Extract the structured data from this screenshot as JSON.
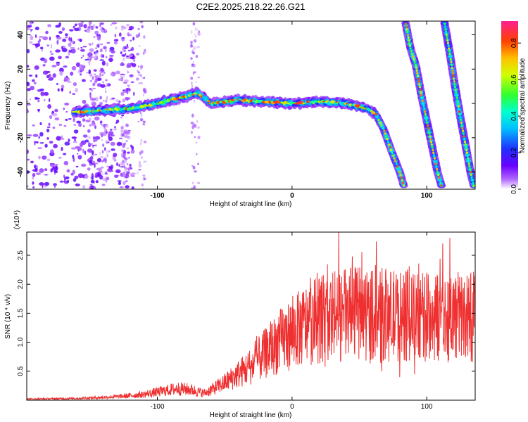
{
  "title": "C2E2.2025.218.22.26.G21",
  "chart_data": [
    {
      "type": "heatmap",
      "xlabel": "Height of straight line (km)",
      "ylabel": "Frequency (Hz)",
      "xlim": [
        -197,
        136
      ],
      "ylim": [
        -50,
        48
      ],
      "xticks": [
        -100,
        0,
        100
      ],
      "xtick_labels": [
        "-100",
        "0",
        "100"
      ],
      "yticks": [
        40,
        20,
        0,
        -20,
        -40
      ],
      "ytick_labels": [
        "40",
        "20",
        "0",
        "-20",
        "-40"
      ],
      "colorbar": {
        "label": "Normalized spectral amplitude",
        "range": [
          0,
          0.92
        ],
        "ticks": [
          0.8,
          0.6,
          0.4,
          0.2,
          0.0
        ],
        "tick_labels": [
          "0.8",
          "0.6",
          "0.4",
          "0.2",
          "0.0"
        ]
      },
      "main_ridge": [
        [
          -162,
          -5
        ],
        [
          -140,
          -4
        ],
        [
          -120,
          -3
        ],
        [
          -100,
          0
        ],
        [
          -80,
          4
        ],
        [
          -70,
          6
        ],
        [
          -60,
          0
        ],
        [
          -40,
          2
        ],
        [
          -20,
          1
        ],
        [
          0,
          0
        ],
        [
          20,
          1
        ],
        [
          40,
          0
        ],
        [
          55,
          -3
        ],
        [
          62,
          -6
        ],
        [
          68,
          -15
        ],
        [
          74,
          -28
        ],
        [
          80,
          -40
        ],
        [
          83,
          -48
        ]
      ],
      "diagonal_ridges": [
        [
          [
            84,
            48
          ],
          [
            88,
            32
          ],
          [
            92,
            22
          ],
          [
            96,
            5
          ],
          [
            100,
            -10
          ],
          [
            104,
            -25
          ],
          [
            108,
            -40
          ],
          [
            111,
            -48
          ]
        ],
        [
          [
            113,
            48
          ],
          [
            117,
            30
          ],
          [
            121,
            10
          ],
          [
            125,
            -8
          ],
          [
            129,
            -25
          ],
          [
            133,
            -42
          ],
          [
            135,
            -48
          ]
        ]
      ]
    },
    {
      "type": "line",
      "xlabel": "Height of straight line (km)",
      "ylabel": "SNR (10 * v/v)",
      "multiplier": "(x10⁴)",
      "xlim": [
        -197,
        136
      ],
      "ylim": [
        0,
        2.9
      ],
      "xticks": [
        -100,
        0,
        100
      ],
      "xtick_labels": [
        "-100",
        "0",
        "100"
      ],
      "yticks": [
        0.5,
        1.0,
        1.5,
        2.0,
        2.5
      ],
      "ytick_labels": [
        "0.5",
        "1.0",
        "1.5",
        "2.0",
        "2.5"
      ],
      "series": [
        {
          "color": "#ef3030",
          "envelope": [
            [
              -197,
              0.02
            ],
            [
              -160,
              0.03
            ],
            [
              -130,
              0.06
            ],
            [
              -110,
              0.1
            ],
            [
              -100,
              0.14
            ],
            [
              -85,
              0.2
            ],
            [
              -75,
              0.18
            ],
            [
              -65,
              0.12
            ],
            [
              -50,
              0.3
            ],
            [
              -40,
              0.45
            ],
            [
              -30,
              0.6
            ],
            [
              -20,
              0.8
            ],
            [
              -10,
              1.0
            ],
            [
              0,
              1.15
            ],
            [
              10,
              1.3
            ],
            [
              20,
              1.4
            ],
            [
              30,
              1.45
            ],
            [
              50,
              1.5
            ],
            [
              60,
              1.5
            ],
            [
              80,
              1.45
            ],
            [
              100,
              1.42
            ],
            [
              120,
              1.45
            ],
            [
              136,
              1.45
            ]
          ]
        }
      ]
    }
  ]
}
